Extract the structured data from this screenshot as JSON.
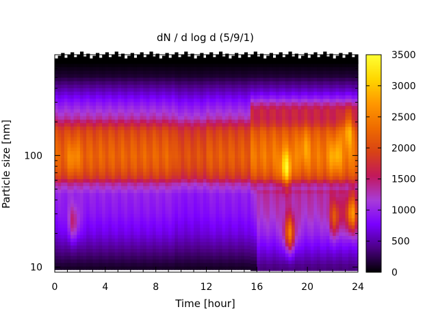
{
  "chart_data": {
    "type": "heatmap",
    "title": "dN / d log d (5/9/1)",
    "xlabel": "Time [hour]",
    "ylabel": "Particle size [nm]",
    "xlim": [
      0,
      24
    ],
    "ylim": [
      9,
      800
    ],
    "y_scale": "log",
    "x_ticks": [
      0,
      4,
      8,
      12,
      16,
      20,
      24
    ],
    "x_tick_labels": [
      "0",
      "4",
      "8",
      "12",
      "16",
      "20",
      "24"
    ],
    "y_ticks": [
      10,
      100
    ],
    "y_tick_labels": [
      "10",
      "100"
    ],
    "colorbar": {
      "min": 0,
      "max": 3500,
      "ticks": [
        0,
        500,
        1000,
        1500,
        2000,
        2500,
        3000,
        3500
      ],
      "tick_labels": [
        "0",
        "500",
        "1000",
        "1500",
        "2000",
        "2500",
        "3000",
        "3500"
      ],
      "palette": [
        "#000000",
        "#4b0082",
        "#7a00ff",
        "#a83cd8",
        "#c2185b",
        "#d84315",
        "#ef6c00",
        "#ff9800",
        "#ffd600",
        "#ffff33"
      ]
    },
    "grid": false,
    "size_profile_nm": [
      10,
      20,
      30,
      45,
      55,
      65,
      80,
      100,
      130,
      170,
      220,
      300,
      400,
      520,
      650
    ],
    "size_profile_value": [
      120,
      700,
      900,
      1000,
      1300,
      1900,
      2150,
      2250,
      2150,
      1950,
      1300,
      900,
      500,
      150,
      30
    ],
    "columns": [
      {
        "time_start": 0,
        "time_end": 9.5,
        "lower_edge_nm": 9.5,
        "mid_band_gain": 1.0,
        "upper_band_top_nm": 260
      },
      {
        "time_start": 9.5,
        "time_end": 12,
        "lower_edge_nm": 9.5,
        "mid_band_gain": 0.92,
        "upper_band_top_nm": 260
      },
      {
        "time_start": 12,
        "time_end": 15.5,
        "lower_edge_nm": 9.5,
        "mid_band_gain": 0.97,
        "upper_band_top_nm": 270
      },
      {
        "time_start": 15.5,
        "time_end": 24,
        "lower_edge_nm": 9.3,
        "mid_band_gain": 1.08,
        "upper_band_top_nm": 300
      }
    ],
    "events": [
      {
        "time": 1.5,
        "center_nm": 95,
        "value": 2700
      },
      {
        "time": 1.5,
        "center_nm": 25,
        "value": 1500
      },
      {
        "time": 18.3,
        "center_nm": 75,
        "value": 3200
      },
      {
        "time": 18.6,
        "center_nm": 20,
        "value": 2200
      },
      {
        "time": 19.8,
        "center_nm": 120,
        "value": 2600
      },
      {
        "time": 22.2,
        "center_nm": 100,
        "value": 2900
      },
      {
        "time": 22.2,
        "center_nm": 28,
        "value": 1900
      },
      {
        "time": 23.5,
        "center_nm": 30,
        "value": 2500
      },
      {
        "time": 23.2,
        "center_nm": 170,
        "value": 2750
      }
    ]
  }
}
